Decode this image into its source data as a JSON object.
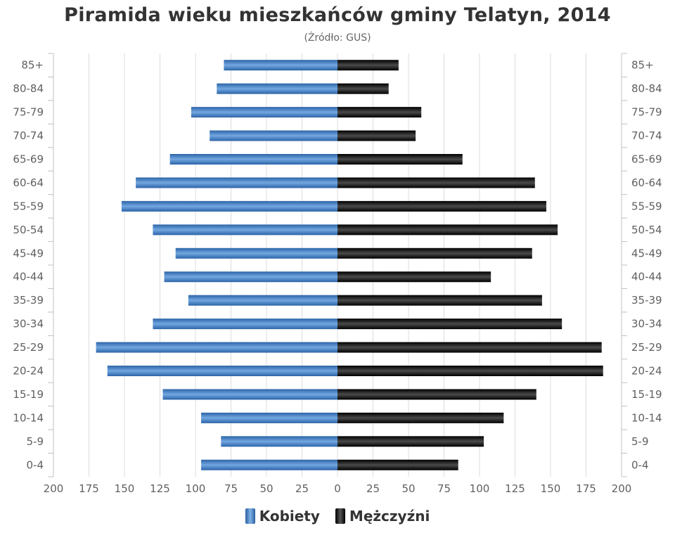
{
  "chart_data": {
    "type": "bar",
    "orientation": "horizontal",
    "title": "Piramida wieku mieszkańców gminy Telatyn, 2014",
    "subtitle": "(Źródło: GUS)",
    "categories": [
      "85+",
      "80-84",
      "75-79",
      "70-74",
      "65-69",
      "60-64",
      "55-59",
      "50-54",
      "45-49",
      "40-44",
      "35-39",
      "30-34",
      "25-29",
      "20-24",
      "15-19",
      "10-14",
      "5-9",
      "0-4"
    ],
    "series": [
      {
        "name": "Kobiety",
        "color": "#3a78c2",
        "values": [
          80,
          85,
          103,
          90,
          118,
          142,
          152,
          130,
          114,
          122,
          105,
          130,
          170,
          162,
          123,
          96,
          82,
          96
        ]
      },
      {
        "name": "Mężczyźni",
        "color": "#111111",
        "values": [
          43,
          36,
          59,
          55,
          88,
          139,
          147,
          155,
          137,
          108,
          144,
          158,
          186,
          187,
          140,
          117,
          103,
          85
        ]
      }
    ],
    "xlim": [
      -200,
      200
    ],
    "x_ticks": [
      -200,
      -175,
      -150,
      -125,
      -100,
      -75,
      -50,
      -25,
      0,
      25,
      50,
      75,
      100,
      125,
      150,
      175,
      200
    ],
    "x_tick_labels": [
      "200",
      "175",
      "150",
      "125",
      "100",
      "75",
      "50",
      "25",
      "0",
      "25",
      "50",
      "75",
      "100",
      "125",
      "150",
      "175",
      "200"
    ],
    "grid": true,
    "legend_position": "bottom-center"
  }
}
